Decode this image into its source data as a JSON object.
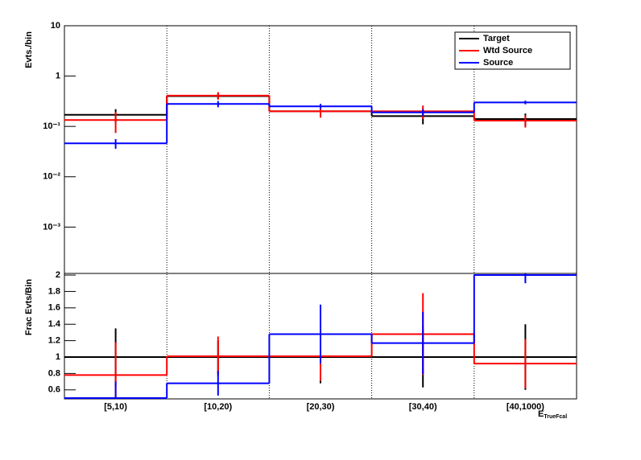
{
  "chart_data": [
    {
      "type": "step",
      "y_label": "Evts./bin",
      "log_scale": true,
      "ylim": [
        0.00012,
        10
      ],
      "yticks": [
        {
          "value": 0.001,
          "label": "10⁻³"
        },
        {
          "value": 0.01,
          "label": "10⁻²"
        },
        {
          "value": 0.1,
          "label": "10⁻¹"
        },
        1,
        10
      ],
      "legend": "top-right",
      "series": [
        {
          "name": "Target",
          "color": "#000000",
          "values": [
            0.17,
            0.4,
            0.2,
            0.16,
            0.14
          ],
          "errors": [
            0.05,
            0.05,
            0.05,
            0.05,
            0.04
          ]
        },
        {
          "name": "Wtd Source",
          "color": "#ff0000",
          "values": [
            0.134,
            0.41,
            0.2,
            0.2,
            0.13
          ],
          "errors": [
            0.06,
            0.07,
            0.05,
            0.06,
            0.035
          ]
        },
        {
          "name": "Source",
          "color": "#0000ff",
          "values": [
            0.046,
            0.28,
            0.25,
            0.19,
            0.3
          ],
          "errors": [
            0.01,
            0.04,
            0.03,
            0.03,
            0.025
          ]
        }
      ]
    },
    {
      "type": "step",
      "y_label": "Frac Evts/Bin",
      "x_label": "E",
      "x_label_sub": "TrueFcal",
      "categories": [
        "[5,10)",
        "[10,20)",
        "[20,30)",
        "[30,40)",
        "[40,1000)"
      ],
      "ylim": [
        0.49,
        2.02
      ],
      "yticks": [
        0.6,
        0.8,
        1,
        1.2,
        1.4,
        1.6,
        1.8,
        2
      ],
      "series": [
        {
          "name": "Target",
          "color": "#000000",
          "values": [
            1,
            1,
            1,
            1,
            1
          ],
          "errors": [
            0.35,
            0.2,
            0.32,
            0.37,
            0.4
          ]
        },
        {
          "name": "Wtd Source",
          "color": "#ff0000",
          "values": [
            0.78,
            1.01,
            1.01,
            1.28,
            0.92
          ],
          "errors": [
            0.4,
            0.24,
            0.3,
            0.5,
            0.3
          ]
        },
        {
          "name": "Source",
          "color": "#0000ff",
          "values": [
            0.5,
            0.68,
            1.28,
            1.17,
            2.0
          ],
          "errors": [
            0.2,
            0.15,
            0.36,
            0.38,
            0.1
          ]
        }
      ]
    }
  ]
}
